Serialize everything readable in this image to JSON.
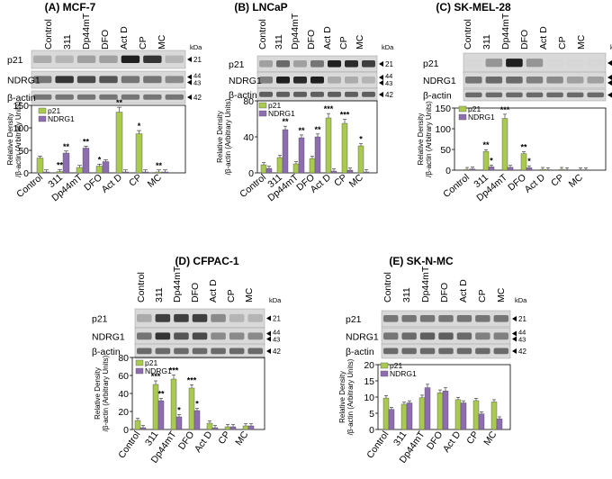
{
  "figure": {
    "kda_label": "kDa",
    "axis_label_line1": "Relative Density",
    "axis_label_line2": "/β-actin (Arbitrary Units)",
    "legend": [
      "p21",
      "NDRG1"
    ],
    "series_colors": {
      "p21": "#a9c94f",
      "NDRG1": "#8d6db0"
    },
    "band_labels": [
      "p21",
      "NDRG1",
      "β-actin"
    ],
    "marker_labels": {
      "p21": "21",
      "ndrg1_upper": "44",
      "ndrg1_lower": "43",
      "actin": "42"
    },
    "conditions": [
      "Control",
      "311",
      "Dp44mT",
      "DFO",
      "Act D",
      "CP",
      "MC"
    ]
  },
  "chart_data": [
    {
      "type": "bar",
      "title": "(A) MCF-7",
      "categories": [
        "Control",
        "311",
        "Dp44mT",
        "DFO",
        "Act D",
        "CP",
        "MC"
      ],
      "series": [
        {
          "name": "p21",
          "values": [
            33,
            3,
            12,
            15,
            135,
            87,
            2
          ]
        },
        {
          "name": "NDRG1",
          "values": [
            2,
            44,
            55,
            25,
            2,
            2,
            2
          ]
        }
      ],
      "ylim": [
        0,
        150
      ],
      "yticks": [
        0,
        50,
        100,
        150
      ],
      "annotations": [
        "**",
        "**",
        "**",
        "*",
        "**",
        "*",
        "**"
      ]
    },
    {
      "type": "bar",
      "title": "(B) LNCaP",
      "categories": [
        "Control",
        "311",
        "Dp44mT",
        "DFO",
        "Act D",
        "CP",
        "MC"
      ],
      "series": [
        {
          "name": "p21",
          "values": [
            9,
            17,
            10,
            16,
            61,
            55,
            30
          ]
        },
        {
          "name": "NDRG1",
          "values": [
            5,
            48,
            39,
            40,
            2,
            3,
            1
          ]
        }
      ],
      "ylim": [
        0,
        80
      ],
      "yticks": [
        0,
        40,
        80
      ],
      "annotations": [
        "**",
        "**",
        "**",
        "***",
        "***",
        "*"
      ]
    },
    {
      "type": "bar",
      "title": "(C) SK-MEL-28",
      "categories": [
        "Control",
        "311",
        "Dp44mT",
        "DFO",
        "Act D",
        "CP",
        "MC"
      ],
      "series": [
        {
          "name": "p21",
          "values": [
            2,
            45,
            125,
            40,
            2,
            2,
            1
          ]
        },
        {
          "name": "NDRG1",
          "values": [
            3,
            8,
            7,
            6,
            1,
            1,
            1
          ]
        }
      ],
      "ylim": [
        0,
        150
      ],
      "yticks": [
        0,
        50,
        100,
        150
      ],
      "annotations": [
        "**",
        "*",
        "***",
        "**",
        "*"
      ]
    },
    {
      "type": "bar",
      "title": "(D) CFPAC-1",
      "categories": [
        "Control",
        "311",
        "Dp44mT",
        "DFO",
        "Act D",
        "CP",
        "MC"
      ],
      "series": [
        {
          "name": "p21",
          "values": [
            10,
            50,
            56,
            46,
            7,
            3,
            4
          ]
        },
        {
          "name": "NDRG1",
          "values": [
            2,
            32,
            14,
            21,
            2,
            3,
            4
          ]
        }
      ],
      "ylim": [
        0,
        80
      ],
      "yticks": [
        0,
        20,
        40,
        60,
        80
      ],
      "annotations": [
        "***",
        "**",
        "***",
        "*",
        "***",
        "*"
      ]
    },
    {
      "type": "bar",
      "title": "(E) SK-N-MC",
      "categories": [
        "Control",
        "311",
        "Dp44mT",
        "DFO",
        "Act D",
        "CP",
        "MC"
      ],
      "series": [
        {
          "name": "p21",
          "values": [
            9.7,
            7.8,
            9.8,
            11.3,
            9.2,
            8.9,
            8.5
          ]
        },
        {
          "name": "NDRG1",
          "values": [
            6.2,
            8.2,
            12.9,
            11.9,
            8.2,
            4.8,
            3.3
          ]
        }
      ],
      "ylim": [
        0,
        20
      ],
      "yticks": [
        0,
        5,
        10,
        15,
        20
      ],
      "annotations": []
    }
  ]
}
